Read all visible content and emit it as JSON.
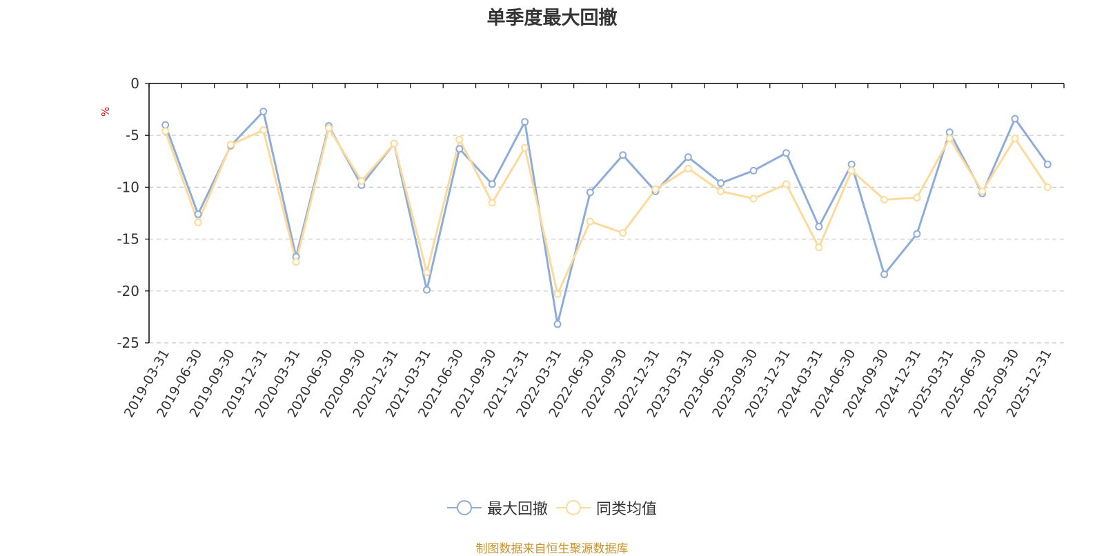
{
  "title": "单季度最大回撤",
  "source": "制图数据来自恒生聚源数据库",
  "colors": {
    "series1": "#8eacd9",
    "series2": "#fdd99a",
    "unit": "#ee0000",
    "grid": "#c8c8c8",
    "axis": "#000000",
    "source": "#c9922a"
  },
  "chart_data": {
    "type": "line",
    "title": "单季度最大回撤",
    "ylabel": "%",
    "ylim": [
      -25,
      0
    ],
    "yticks": [
      "0",
      "-5",
      "-10",
      "-15",
      "-20",
      "-25"
    ],
    "grid": true,
    "legend_position": "bottom",
    "categories": [
      "2019-03-31",
      "2019-06-30",
      "2019-09-30",
      "2019-12-31",
      "2020-03-31",
      "2020-06-30",
      "2020-09-30",
      "2020-12-31",
      "2021-03-31",
      "2021-06-30",
      "2021-09-30",
      "2021-12-31",
      "2022-03-31",
      "2022-06-30",
      "2022-09-30",
      "2022-12-31",
      "2023-03-31",
      "2023-06-30",
      "2023-09-30",
      "2023-12-31",
      "2024-03-31",
      "2024-06-30",
      "2024-09-30",
      "2024-12-31",
      "2025-03-31",
      "2025-06-30",
      "2025-09-30",
      "2025-12-31"
    ],
    "series": [
      {
        "name": "最大回撤",
        "values": [
          -4.0,
          -12.6,
          -6.0,
          -2.7,
          -16.7,
          -4.1,
          -9.8,
          -5.8,
          -19.9,
          -6.3,
          -9.7,
          -3.7,
          -23.2,
          -10.5,
          -6.9,
          -10.4,
          -7.1,
          -9.6,
          -8.4,
          -6.7,
          -13.8,
          -7.8,
          -18.4,
          -14.5,
          -4.7,
          -10.6,
          -3.4,
          -7.8
        ]
      },
      {
        "name": "同类均值",
        "values": [
          -4.6,
          -13.4,
          -5.9,
          -4.5,
          -17.2,
          -4.3,
          -9.4,
          -5.8,
          -18.2,
          -5.4,
          -11.5,
          -6.2,
          -20.3,
          -13.3,
          -14.4,
          -10.2,
          -8.2,
          -10.4,
          -11.1,
          -9.7,
          -15.8,
          -8.4,
          -11.2,
          -11.0,
          -5.3,
          -10.4,
          -5.3,
          -10.0
        ]
      }
    ]
  }
}
